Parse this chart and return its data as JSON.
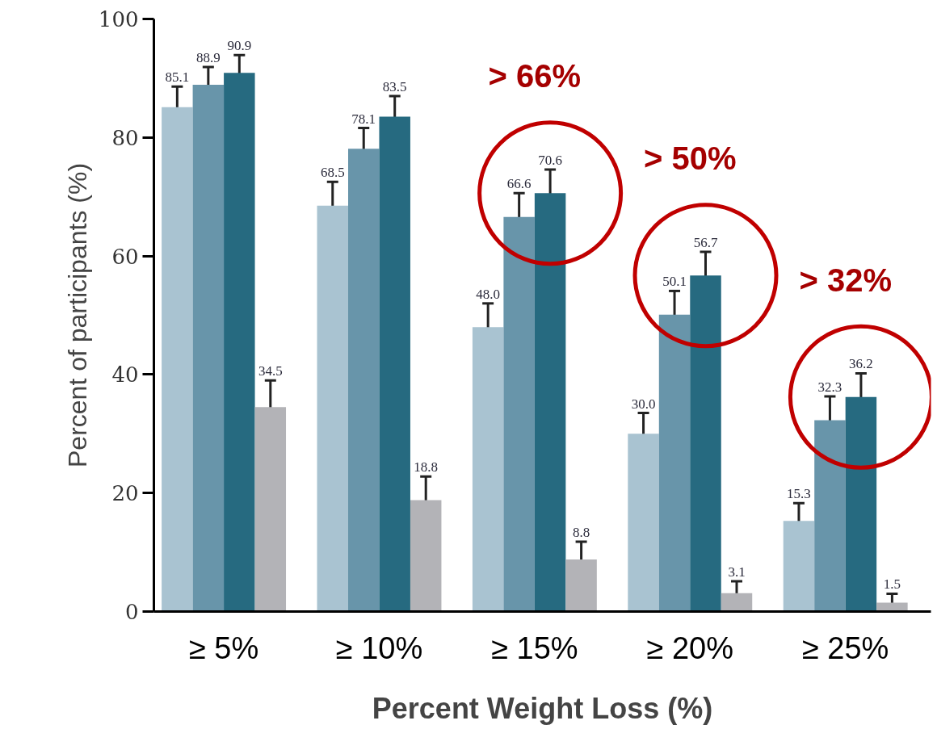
{
  "chart_data": {
    "type": "bar",
    "xlabel": "Percent Weight Loss (%)",
    "ylabel": "Percent of participants (%)",
    "categories": [
      "≥ 5%",
      "≥ 10%",
      "≥ 15%",
      "≥ 20%",
      "≥ 25%"
    ],
    "series": [
      {
        "color": "#a9c3d1",
        "values": [
          85.1,
          68.5,
          48.0,
          30.0,
          15.3
        ],
        "value_labels": [
          "85.1",
          "68.5",
          "48.0",
          "30.0",
          "15.3"
        ],
        "errors": [
          3.5,
          4,
          4,
          3.5,
          3
        ]
      },
      {
        "color": "#6895aa",
        "values": [
          88.9,
          78.1,
          66.6,
          50.1,
          32.3
        ],
        "errors": [
          3,
          3.5,
          4,
          4,
          4
        ]
      },
      {
        "color": "#266a80",
        "values": [
          90.9,
          83.5,
          70.6,
          56.7,
          36.2
        ],
        "errors": [
          3,
          3.5,
          4,
          4,
          4
        ]
      },
      {
        "color": "#b3b3b7",
        "values": [
          34.5,
          18.8,
          8.8,
          3.1,
          1.5
        ],
        "errors": [
          4.5,
          4,
          3,
          2,
          1.5
        ]
      }
    ],
    "ylim": [
      0,
      100
    ],
    "yticks": [
      0,
      20,
      40,
      60,
      80,
      100
    ],
    "grid": false,
    "data_labels": true,
    "annotations": [
      "> 66%",
      "> 50%",
      "> 32%"
    ]
  }
}
